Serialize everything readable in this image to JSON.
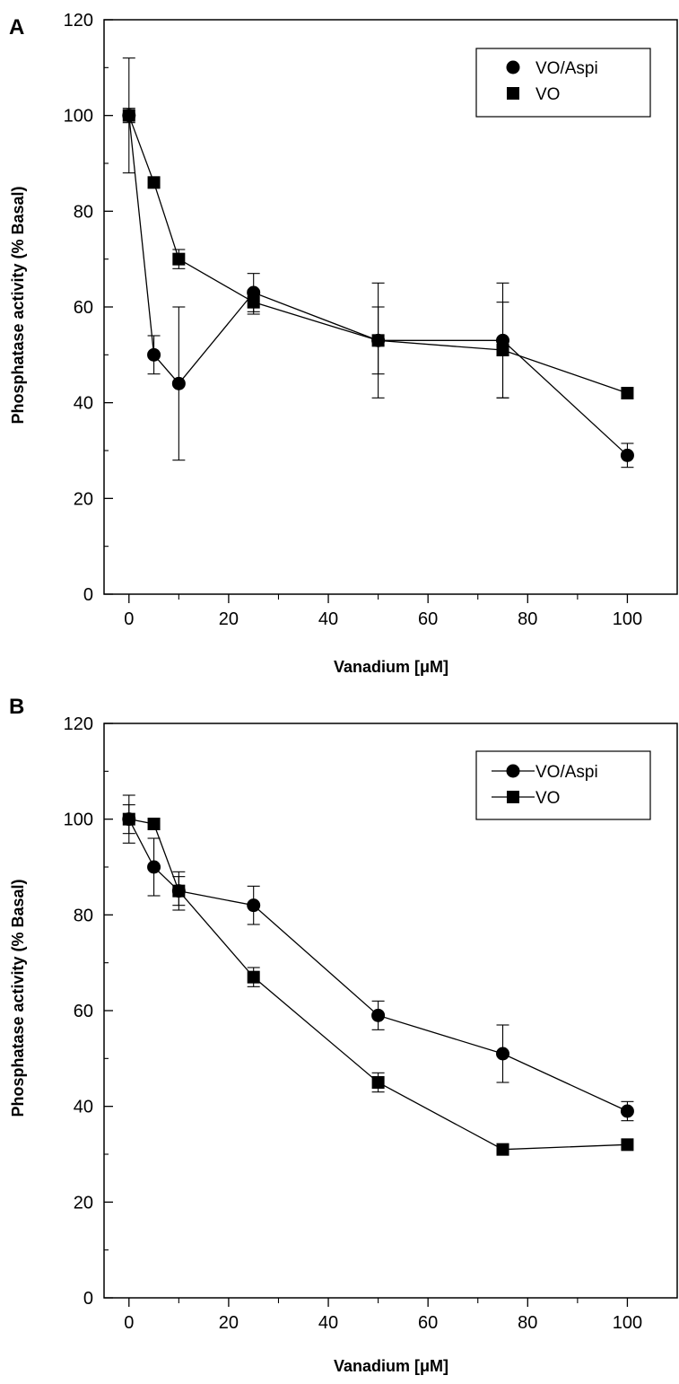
{
  "chart_data": [
    {
      "type": "line",
      "panel_label": "A",
      "xlabel": "Vanadium [μM]",
      "ylabel": "Phosphatase activity (% Basal)",
      "xlim": [
        -5,
        110
      ],
      "ylim": [
        0,
        120
      ],
      "x_ticks": [
        0,
        20,
        40,
        60,
        80,
        100
      ],
      "y_ticks": [
        0,
        20,
        40,
        60,
        80,
        100,
        120
      ],
      "grid": false,
      "legend_position": "top-right",
      "legend_shows_lines": false,
      "series": [
        {
          "name": "VO/Aspi",
          "marker": "circle",
          "x": [
            0,
            5,
            10,
            25,
            50,
            75,
            100
          ],
          "y": [
            100,
            50,
            44,
            63,
            53,
            53,
            29
          ],
          "error": [
            12,
            4,
            16,
            4,
            7,
            12,
            2.5
          ]
        },
        {
          "name": "VO",
          "marker": "square",
          "x": [
            0,
            5,
            10,
            25,
            50,
            75,
            100
          ],
          "y": [
            100,
            86,
            70,
            61,
            53,
            51,
            42
          ],
          "error": [
            1.5,
            0,
            2,
            2.5,
            12,
            10,
            0
          ]
        }
      ]
    },
    {
      "type": "line",
      "panel_label": "B",
      "xlabel": "Vanadium [μM]",
      "ylabel": "Phosphatase activity (% Basal)",
      "xlim": [
        -5,
        110
      ],
      "ylim": [
        0,
        120
      ],
      "x_ticks": [
        0,
        20,
        40,
        60,
        80,
        100
      ],
      "y_ticks": [
        0,
        20,
        40,
        60,
        80,
        100,
        120
      ],
      "grid": false,
      "legend_position": "top-right",
      "legend_shows_lines": true,
      "series": [
        {
          "name": "VO/Aspi",
          "marker": "circle",
          "x": [
            0,
            5,
            10,
            25,
            50,
            75,
            100
          ],
          "y": [
            100,
            90,
            85,
            82,
            59,
            51,
            39
          ],
          "error": [
            5,
            6,
            4,
            4,
            3,
            6,
            2
          ]
        },
        {
          "name": "VO",
          "marker": "square",
          "x": [
            0,
            5,
            10,
            25,
            50,
            75,
            100
          ],
          "y": [
            100,
            99,
            85,
            67,
            45,
            31,
            32
          ],
          "error": [
            3,
            0,
            3,
            2,
            2,
            0,
            0
          ]
        }
      ]
    }
  ],
  "colors": {
    "ink": "#000000",
    "background": "#ffffff"
  }
}
